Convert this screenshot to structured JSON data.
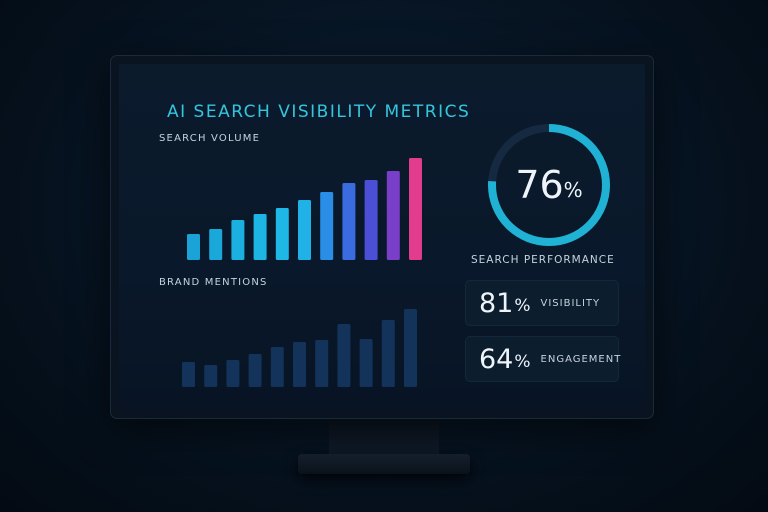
{
  "dashboard": {
    "title": "AI SEARCH VISIBILITY METRICS",
    "search_volume_label": "SEARCH VOLUME",
    "brand_mentions_label": "BRAND MENTIONS",
    "performance": {
      "value": "76",
      "unit": "%",
      "fraction": 0.76,
      "label": "SEARCH PERFORMANCE"
    },
    "stats": [
      {
        "value": "81",
        "unit": "%",
        "label": "VISIBILITY"
      },
      {
        "value": "64",
        "unit": "%",
        "label": "ENGAGEMENT"
      }
    ]
  },
  "chart_data": [
    {
      "type": "bar",
      "title": "SEARCH VOLUME",
      "values": [
        26,
        31,
        40,
        46,
        52,
        60,
        68,
        77,
        80,
        89,
        102
      ],
      "colors": [
        "#1aa3d6",
        "#1aa8da",
        "#1bb0e0",
        "#1db5e4",
        "#1fb7e6",
        "#20b2e6",
        "#2a8ee6",
        "#3a6ce0",
        "#4a4fd6",
        "#7a3fc8",
        "#e13c8e"
      ],
      "ylim": [
        0,
        110
      ],
      "grid": false
    },
    {
      "type": "bar",
      "title": "BRAND MENTIONS",
      "values": [
        25,
        22,
        27,
        33,
        40,
        45,
        47,
        63,
        48,
        67,
        78
      ],
      "color": "#13335a",
      "ylim": [
        0,
        110
      ],
      "grid": false
    }
  ],
  "colors": {
    "accent": "#33c6dd",
    "ring": "#1fb2d4",
    "ring_track": "#152a40"
  }
}
